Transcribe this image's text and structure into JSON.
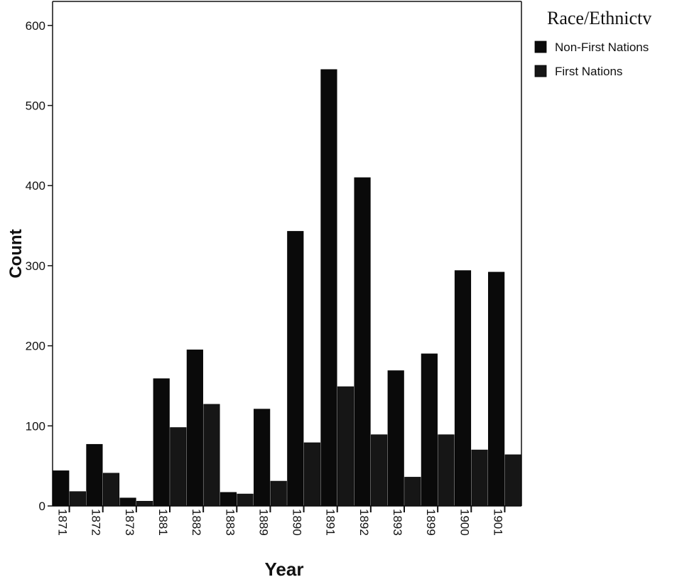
{
  "chart_data": {
    "type": "bar",
    "xlabel": "Year",
    "ylabel": "Count",
    "ylim": [
      0,
      630
    ],
    "yticks": [
      0,
      100,
      200,
      300,
      400,
      500,
      600
    ],
    "categories": [
      "1871",
      "1872",
      "1873",
      "1881",
      "1882",
      "1883",
      "1889",
      "1890",
      "1891",
      "1892",
      "1893",
      "1899",
      "1900",
      "1901"
    ],
    "legend": {
      "title": "Race/Ethnictv",
      "position": "right"
    },
    "series": [
      {
        "name": "Non-First Nations",
        "color": "#0a0a0a",
        "values": [
          44,
          77,
          10,
          159,
          195,
          17,
          121,
          343,
          545,
          410,
          169,
          190,
          294,
          292
        ]
      },
      {
        "name": "First Nations",
        "color": "#161616",
        "values": [
          18,
          41,
          6,
          98,
          127,
          15,
          31,
          79,
          149,
          89,
          36,
          89,
          70,
          64
        ]
      }
    ]
  }
}
